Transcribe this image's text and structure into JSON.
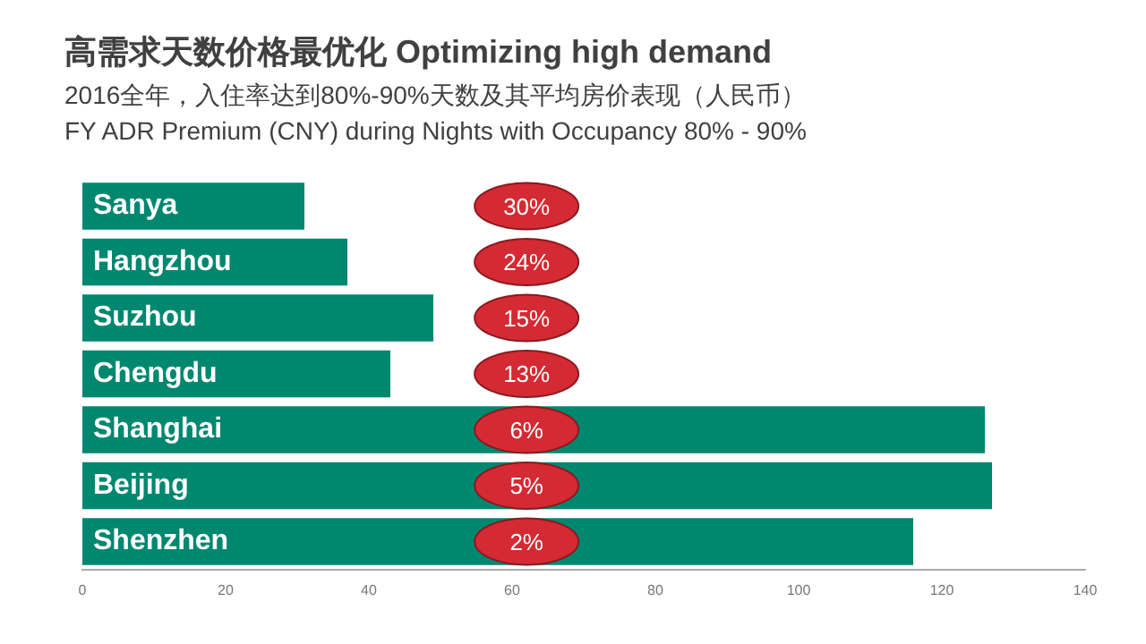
{
  "chart_data": {
    "type": "bar",
    "orientation": "horizontal",
    "title": "高需求天数价格最优化 Optimizing high demand",
    "subtitle": "2016全年，入住率达到80%-90%天数及其平均房价表现（人民币）\nFY ADR Premium (CNY) during Nights with Occupancy 80% - 90%",
    "categories": [
      "Sanya",
      "Hangzhou",
      "Suzhou",
      "Chengdu",
      "Shanghai",
      "Beijing",
      "Shenzhen"
    ],
    "values": [
      31,
      37,
      49,
      43,
      126,
      127,
      116
    ],
    "color": "#00876f",
    "xlim": [
      0,
      140
    ],
    "xticks": [
      0,
      20,
      40,
      60,
      80,
      100,
      120,
      140
    ],
    "grid": false,
    "annotations": [
      "30%",
      "24%",
      "15%",
      "13%",
      "6%",
      "5%",
      "2%"
    ]
  }
}
